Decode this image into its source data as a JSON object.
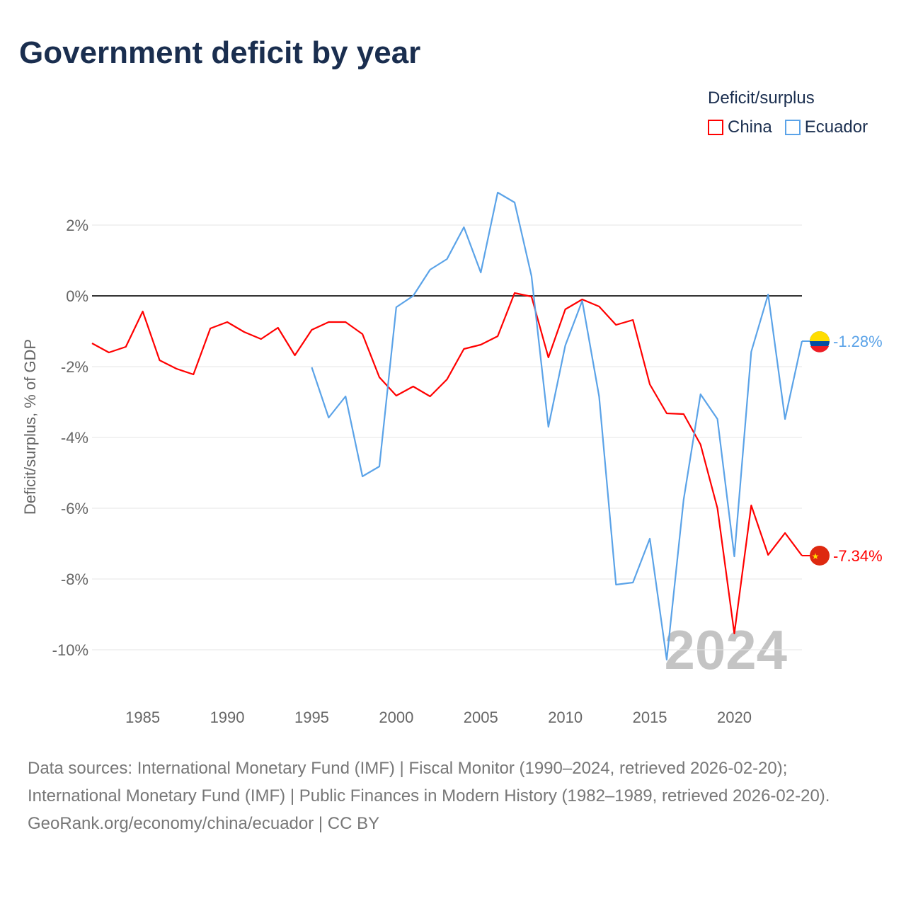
{
  "title": "Government deficit by year",
  "legend": {
    "title": "Deficit/surplus",
    "items": [
      {
        "label": "China",
        "color": "#ff0000"
      },
      {
        "label": "Ecuador",
        "color": "#5ba3e8"
      }
    ]
  },
  "watermark_year": "2024",
  "footer": {
    "sources": "Data sources: International Monetary Fund (IMF) | Fiscal Monitor (1990–2024, retrieved 2026-02-20); International Monetary Fund (IMF) | Public Finances in Modern History (1982–1989, retrieved 2026-02-20).",
    "credit": "GeoRank.org/economy/china/ecuador | CC BY"
  },
  "chart_data": {
    "type": "line",
    "title": "Government deficit by year",
    "xlabel": "",
    "ylabel": "Deficit/surplus, % of GDP",
    "xlim": [
      1982,
      2024
    ],
    "ylim": [
      -11,
      3.5
    ],
    "xticks": [
      1985,
      1990,
      1995,
      2000,
      2005,
      2010,
      2015,
      2020
    ],
    "yticks": [
      2,
      0,
      -2,
      -4,
      -6,
      -8,
      -10
    ],
    "ytick_labels": [
      "2%",
      "0%",
      "-2%",
      "-4%",
      "-6%",
      "-8%",
      "-10%"
    ],
    "grid": true,
    "legend_position": "top-right",
    "series": [
      {
        "name": "China",
        "color": "#ff0000",
        "end_label": "-7.34%",
        "x": [
          1982,
          1983,
          1984,
          1985,
          1986,
          1987,
          1988,
          1989,
          1990,
          1991,
          1992,
          1993,
          1994,
          1995,
          1996,
          1997,
          1998,
          1999,
          2000,
          2001,
          2002,
          2003,
          2004,
          2005,
          2006,
          2007,
          2008,
          2009,
          2010,
          2011,
          2012,
          2013,
          2014,
          2015,
          2016,
          2017,
          2018,
          2019,
          2020,
          2021,
          2022,
          2023,
          2024
        ],
        "values": [
          -1.34,
          -1.6,
          -1.44,
          -0.44,
          -1.82,
          -2.06,
          -2.22,
          -0.92,
          -0.74,
          -1.02,
          -1.22,
          -0.9,
          -1.68,
          -0.96,
          -0.74,
          -0.74,
          -1.08,
          -2.3,
          -2.82,
          -2.56,
          -2.84,
          -2.36,
          -1.5,
          -1.38,
          -1.14,
          0.08,
          -0.02,
          -1.74,
          -0.38,
          -0.1,
          -0.3,
          -0.82,
          -0.68,
          -2.5,
          -3.32,
          -3.34,
          -4.2,
          -6.0,
          -9.54,
          -5.92,
          -7.32,
          -6.7,
          -7.34
        ]
      },
      {
        "name": "Ecuador",
        "color": "#5ba3e8",
        "end_label": "-1.28%",
        "x": [
          1995,
          1996,
          1997,
          1998,
          1999,
          2000,
          2001,
          2002,
          2003,
          2004,
          2005,
          2006,
          2007,
          2008,
          2009,
          2010,
          2011,
          2012,
          2013,
          2014,
          2015,
          2016,
          2017,
          2018,
          2019,
          2020,
          2021,
          2022,
          2023,
          2024
        ],
        "values": [
          -2.02,
          -3.44,
          -2.84,
          -5.1,
          -4.82,
          -0.32,
          0.0,
          0.74,
          1.04,
          1.94,
          0.66,
          2.92,
          2.64,
          0.56,
          -3.7,
          -1.4,
          -0.14,
          -2.84,
          -8.16,
          -8.1,
          -6.86,
          -10.28,
          -5.76,
          -2.78,
          -3.48,
          -7.36,
          -1.58,
          0.04,
          -3.48,
          -1.28
        ]
      }
    ]
  }
}
